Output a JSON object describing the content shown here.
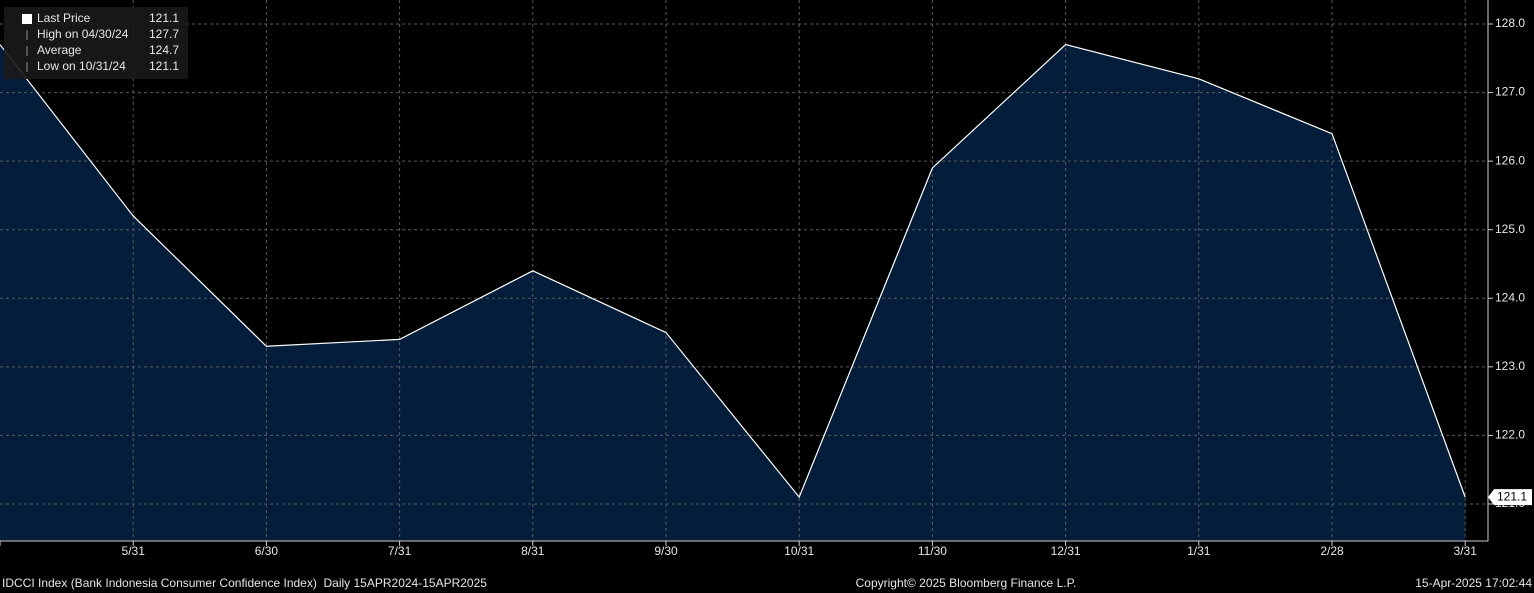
{
  "chart_data": {
    "type": "area",
    "categories": [
      null,
      "5/31",
      "6/30",
      "7/31",
      "8/31",
      "9/30",
      "10/31",
      "11/30",
      "12/31",
      "1/31",
      "2/28",
      "3/31"
    ],
    "values": [
      127.7,
      125.2,
      123.3,
      123.4,
      124.4,
      123.5,
      121.1,
      125.9,
      127.7,
      127.2,
      126.4,
      121.1
    ],
    "color": "#031d3a",
    "line_color": "#ffffff",
    "ylim": [
      120.46,
      128.35
    ],
    "yticks": [
      {
        "value": 121,
        "label": "121.0"
      },
      {
        "value": 122,
        "label": "122.0"
      },
      {
        "value": 123,
        "label": "123.0"
      },
      {
        "value": 124,
        "label": "124.0"
      },
      {
        "value": 125,
        "label": "125.0"
      },
      {
        "value": 126,
        "label": "126.0"
      },
      {
        "value": 127,
        "label": "127.0"
      },
      {
        "value": 128,
        "label": "128.0"
      }
    ],
    "grid": true,
    "legend": [
      {
        "label": "Last Price",
        "value": 121.1
      },
      {
        "label": "High on 04/30/24",
        "value": 127.7
      },
      {
        "label": "Average",
        "value": 124.7
      },
      {
        "label": "Low on 10/31/24",
        "value": 121.1
      }
    ],
    "footer": {
      "left": "IDCCI Index (Bank Indonesia Consumer Confidence Index)  Daily 15APR2024-15APR2025",
      "center": "Copyright© 2025 Bloomberg Finance L.P.",
      "right": "15-Apr-2025 17:02:44"
    }
  }
}
